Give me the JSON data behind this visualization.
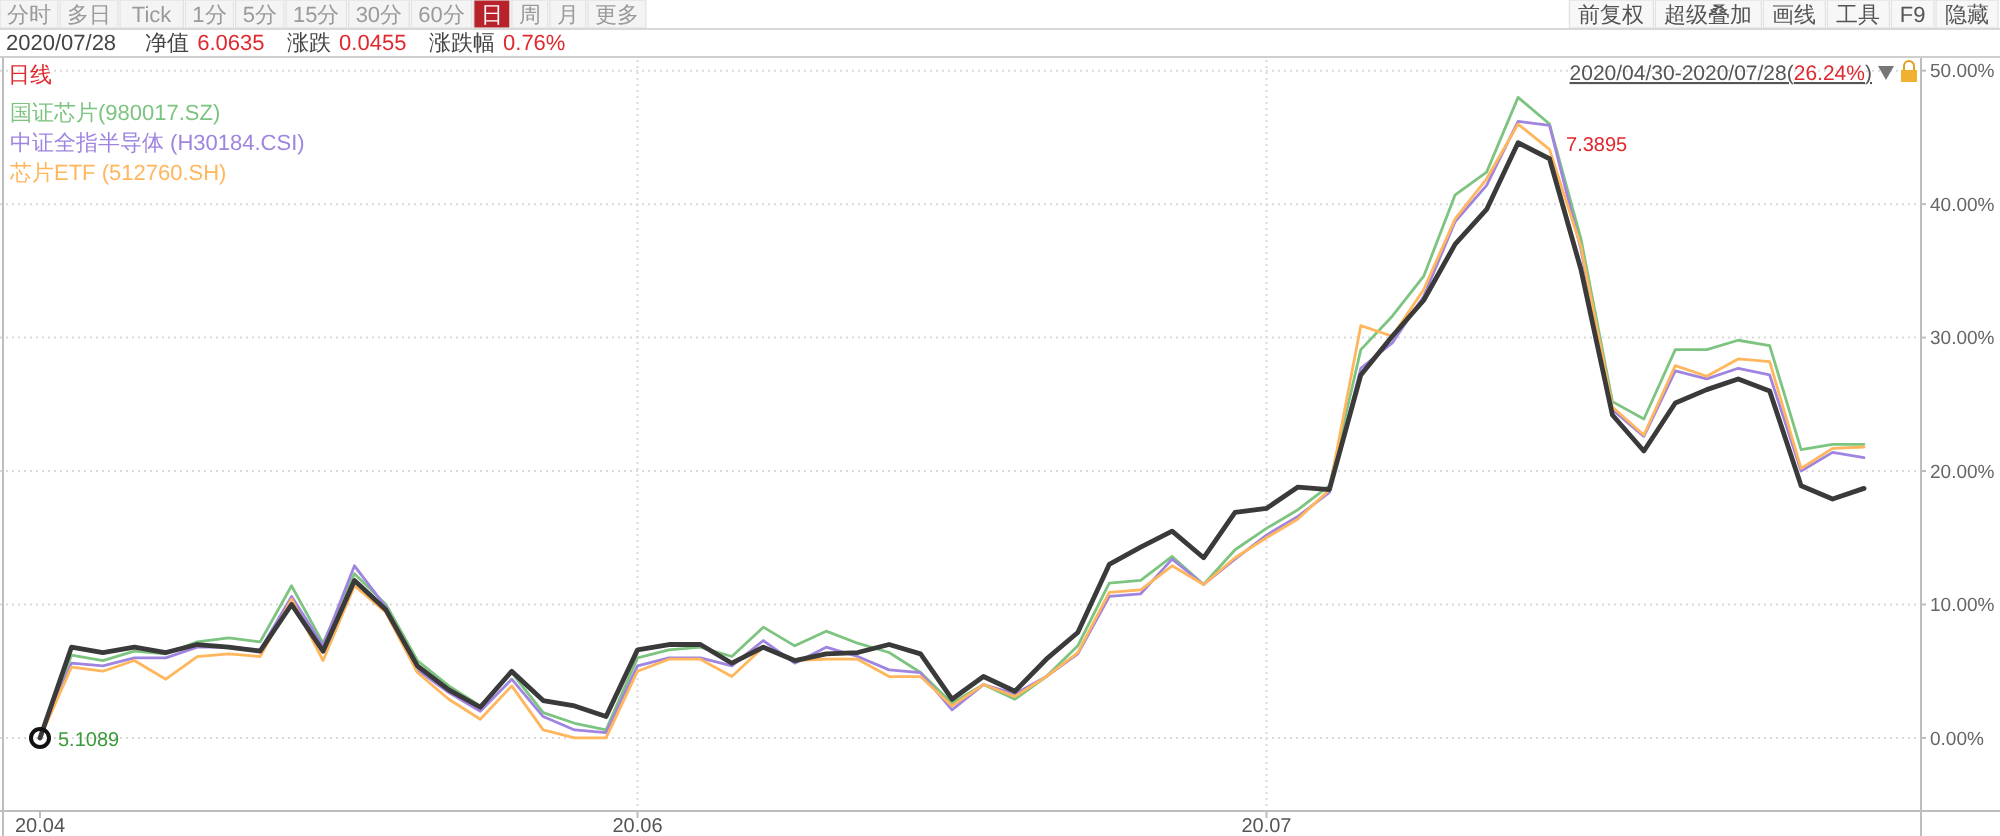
{
  "chart_data": {
    "type": "line",
    "title": "日线",
    "subtitle": "2020/04/30-2020/07/28(26.24%)",
    "annotations": [
      "分时",
      "多日",
      "Tick",
      "1分",
      "5分",
      "15分",
      "30分",
      "60分",
      "日",
      "周",
      "月",
      "更多",
      "前复权",
      "超级叠加",
      "画线",
      "工具",
      "F9",
      "隐藏",
      "2020/07/28",
      "净值",
      "6.0635",
      "涨跌",
      "0.0455",
      "涨跌幅",
      "0.76%",
      "7.3895",
      "5.1089"
    ],
    "categories": [
      "20.04",
      null,
      null,
      null,
      null,
      null,
      null,
      null,
      null,
      null,
      null,
      null,
      null,
      null,
      null,
      null,
      null,
      null,
      null,
      "20.06",
      null,
      null,
      null,
      null,
      null,
      null,
      null,
      null,
      null,
      null,
      null,
      null,
      null,
      null,
      null,
      null,
      null,
      null,
      null,
      "20.07",
      null,
      null,
      null,
      null,
      null,
      null,
      null,
      null,
      null,
      null,
      null,
      null,
      null,
      null,
      null,
      null,
      null,
      null,
      null
    ],
    "series": [
      {
        "name": "国证芯片(980017.SZ)",
        "color": "#7cc47f",
        "values": [
          0,
          6.2,
          5.8,
          6.5,
          6.3,
          7.2,
          7.5,
          7.2,
          11.4,
          7.1,
          12.3,
          10.0,
          5.8,
          3.9,
          2.4,
          4.9,
          1.9,
          1.1,
          0.6,
          6.0,
          6.6,
          6.8,
          6.1,
          8.3,
          6.9,
          8.0,
          7.1,
          6.4,
          4.9,
          2.6,
          4.0,
          2.9,
          4.6,
          6.9,
          11.6,
          11.8,
          13.6,
          11.5,
          14.1,
          15.7,
          17.1,
          18.9,
          29.1,
          31.6,
          34.6,
          40.7,
          42.4,
          48.0,
          46.0,
          37.4,
          25.2,
          23.9,
          29.1,
          29.1,
          29.8,
          29.4,
          21.6,
          22.0,
          22.0
        ]
      },
      {
        "name": "中证全指半导体 (H30184.CSI)",
        "color": "#9f84e0",
        "values": [
          0,
          5.6,
          5.4,
          6.0,
          6.0,
          6.8,
          6.8,
          6.6,
          10.6,
          6.9,
          12.9,
          9.8,
          5.1,
          3.4,
          2.0,
          4.4,
          1.6,
          0.6,
          0.4,
          5.4,
          6.0,
          6.0,
          5.4,
          7.3,
          5.6,
          6.8,
          6.1,
          5.1,
          4.9,
          2.1,
          4.0,
          3.3,
          4.6,
          6.3,
          10.6,
          10.8,
          13.4,
          11.5,
          13.4,
          15.2,
          16.6,
          18.4,
          27.7,
          29.6,
          33.1,
          38.7,
          41.4,
          46.2,
          45.9,
          36.6,
          24.6,
          22.6,
          27.5,
          26.9,
          27.7,
          27.2,
          20.0,
          21.4,
          21.0
        ]
      },
      {
        "name": "芯片ETF (512760.SH)",
        "color": "#ffb65c",
        "values": [
          0,
          5.3,
          5.0,
          5.8,
          4.4,
          6.1,
          6.3,
          6.1,
          10.4,
          5.8,
          11.4,
          9.4,
          4.9,
          2.9,
          1.4,
          3.9,
          0.6,
          0,
          0,
          5.0,
          5.9,
          5.9,
          4.6,
          6.8,
          5.8,
          5.9,
          5.9,
          4.6,
          4.6,
          2.4,
          4.0,
          3.1,
          4.6,
          6.4,
          10.9,
          11.1,
          12.9,
          11.5,
          13.5,
          15.0,
          16.4,
          18.6,
          30.9,
          30.1,
          33.6,
          38.9,
          41.9,
          46.0,
          44.1,
          36.8,
          24.8,
          22.7,
          27.9,
          27.1,
          28.4,
          28.2,
          20.2,
          21.7,
          21.8
        ]
      },
      {
        "color": "#3a3a3a",
        "values": [
          0,
          6.8,
          6.4,
          6.8,
          6.4,
          7.0,
          6.8,
          6.5,
          10.0,
          6.5,
          11.8,
          9.6,
          5.4,
          3.6,
          2.3,
          5.0,
          2.8,
          2.4,
          1.6,
          6.6,
          7.0,
          7.0,
          5.6,
          6.8,
          5.8,
          6.3,
          6.4,
          7.0,
          6.3,
          2.9,
          4.6,
          3.5,
          5.9,
          7.9,
          13.0,
          14.3,
          15.5,
          13.5,
          16.9,
          17.2,
          18.8,
          18.6,
          27.2,
          30.1,
          32.8,
          37.0,
          39.6,
          44.6,
          43.4,
          35.1,
          24.2,
          21.5,
          25.1,
          26.1,
          26.9,
          26.0,
          18.9,
          17.9,
          18.7
        ]
      }
    ],
    "ylim": [
      -5.4,
      50.8
    ],
    "yticks": [
      {
        "value": 0,
        "label": "0.00%"
      },
      {
        "value": 10,
        "label": "10.00%"
      },
      {
        "value": 20,
        "label": "20.00%"
      },
      {
        "value": 30,
        "label": "30.00%"
      },
      {
        "value": 40,
        "label": "40.00%"
      },
      {
        "value": 50,
        "label": "50.00%"
      }
    ],
    "grid": true,
    "legend": "top left"
  }
}
